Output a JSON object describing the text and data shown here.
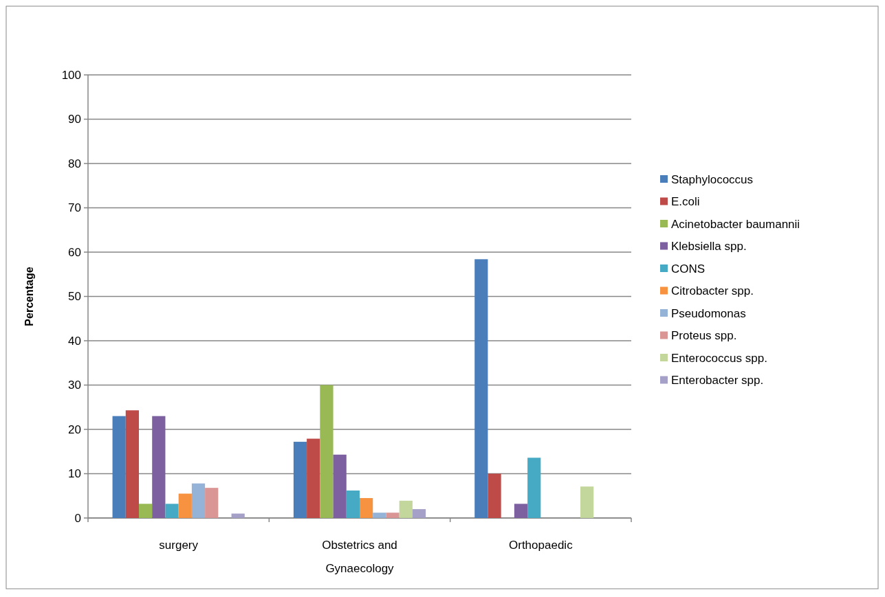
{
  "chart_data": {
    "type": "bar",
    "ylabel": "Percentage",
    "categories": [
      "surgery",
      "Obstetrics and Gynaecology",
      "Orthopaedic"
    ],
    "series": [
      {
        "name": "Staphylococcus",
        "color": "#4a7ebb",
        "values": [
          23.0,
          17.2,
          58.4
        ]
      },
      {
        "name": "E.coli",
        "color": "#be4b48",
        "values": [
          24.3,
          17.9,
          10
        ]
      },
      {
        "name": "Acinetobacter baumannii",
        "color": "#98b954",
        "values": [
          3.2,
          30,
          0
        ]
      },
      {
        "name": "Klebsiella spp.",
        "color": "#7d60a0",
        "values": [
          23.0,
          14.3,
          3.2
        ]
      },
      {
        "name": "CONS",
        "color": "#46aac5",
        "values": [
          3.2,
          6.2,
          13.6
        ]
      },
      {
        "name": "Citrobacter spp.",
        "color": "#f69240",
        "values": [
          5.5,
          4.5,
          0
        ]
      },
      {
        "name": "Pseudomonas",
        "color": "#95b3d7",
        "values": [
          7.8,
          1.2,
          0
        ]
      },
      {
        "name": "Proteus spp.",
        "color": "#d99694",
        "values": [
          6.8,
          1.2,
          0
        ]
      },
      {
        "name": "Enterococcus spp.",
        "color": "#c3d69b",
        "values": [
          0,
          3.9,
          7.1
        ]
      },
      {
        "name": "Enterobacter spp.",
        "color": "#a5a0c8",
        "values": [
          1.0,
          2.0,
          0
        ]
      }
    ],
    "ylim": [
      0,
      100
    ],
    "yticks": [
      0,
      10,
      20,
      30,
      40,
      50,
      60,
      70,
      80,
      90,
      100
    ],
    "grid": "y",
    "legend": "right"
  }
}
